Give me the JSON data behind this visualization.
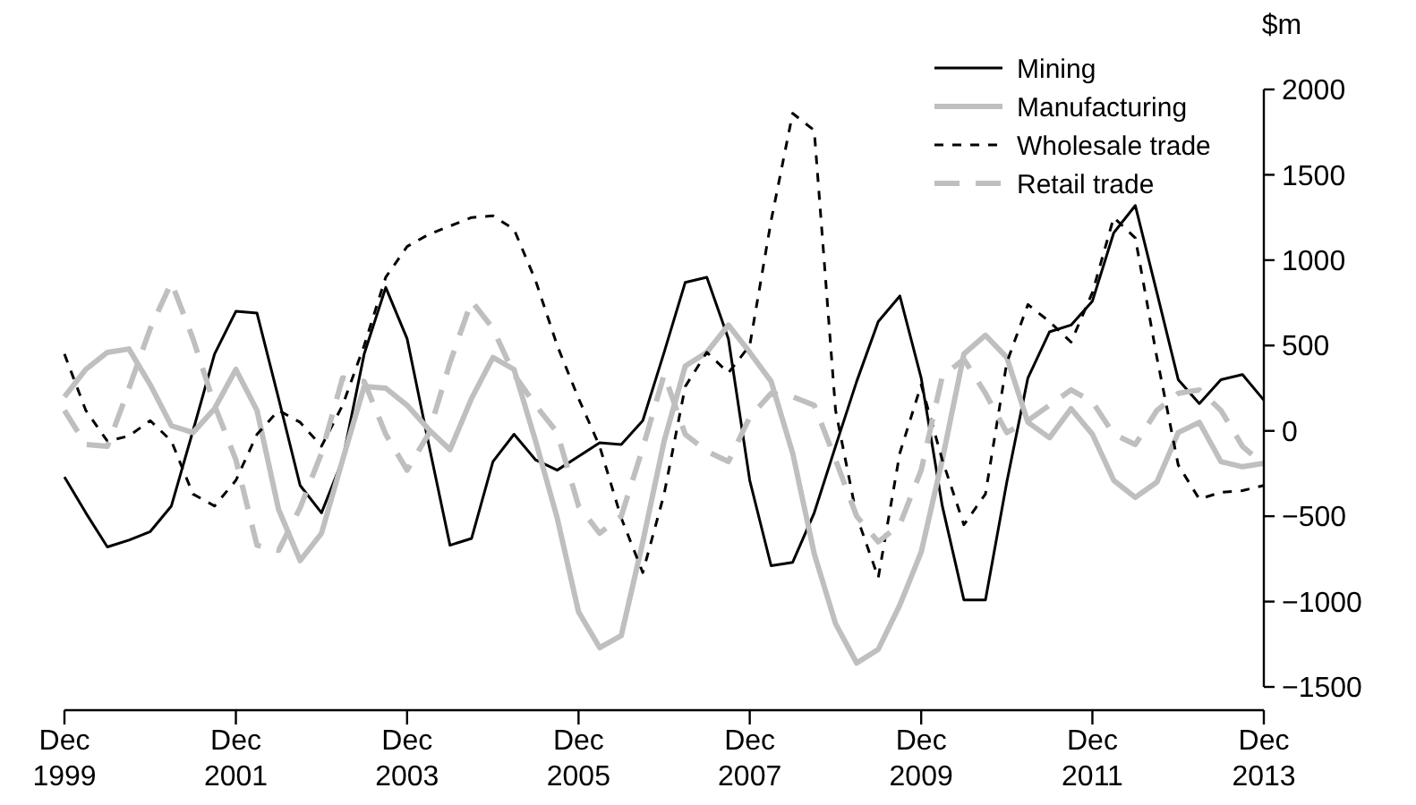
{
  "chart_data": {
    "type": "line",
    "ylabel": "$m",
    "x": [
      "1999-12",
      "2000-03",
      "2000-06",
      "2000-09",
      "2000-12",
      "2001-03",
      "2001-06",
      "2001-09",
      "2001-12",
      "2002-03",
      "2002-06",
      "2002-09",
      "2002-12",
      "2003-03",
      "2003-06",
      "2003-09",
      "2003-12",
      "2004-03",
      "2004-06",
      "2004-09",
      "2004-12",
      "2005-03",
      "2005-06",
      "2005-09",
      "2005-12",
      "2006-03",
      "2006-06",
      "2006-09",
      "2006-12",
      "2007-03",
      "2007-06",
      "2007-09",
      "2007-12",
      "2008-03",
      "2008-06",
      "2008-09",
      "2008-12",
      "2009-03",
      "2009-06",
      "2009-09",
      "2009-12",
      "2010-03",
      "2010-06",
      "2010-09",
      "2010-12",
      "2011-03",
      "2011-06",
      "2011-09",
      "2011-12",
      "2012-03",
      "2012-06",
      "2012-09",
      "2012-12",
      "2013-03",
      "2013-06",
      "2013-09",
      "2013-12"
    ],
    "series": [
      {
        "name": "Mining",
        "color": "#000000",
        "line_style": "solid",
        "values": [
          -270,
          -480,
          -680,
          -640,
          -590,
          -440,
          0,
          450,
          700,
          690,
          190,
          -320,
          -480,
          -170,
          450,
          840,
          540,
          -70,
          -670,
          -630,
          -180,
          -20,
          -170,
          -230,
          -150,
          -70,
          -80,
          60,
          460,
          870,
          900,
          540,
          -290,
          -790,
          -770,
          -480,
          -90,
          290,
          640,
          790,
          310,
          -440,
          -990,
          -990,
          -300,
          310,
          580,
          620,
          760,
          1160,
          1320,
          810,
          300,
          160,
          300,
          330,
          180
        ]
      },
      {
        "name": "Manufacturing",
        "color": "#bfbfbf",
        "line_style": "solid",
        "values": [
          200,
          360,
          460,
          480,
          270,
          30,
          -10,
          130,
          360,
          120,
          -460,
          -760,
          -600,
          -170,
          260,
          250,
          150,
          10,
          -110,
          190,
          430,
          360,
          -60,
          -510,
          -1060,
          -1270,
          -1200,
          -650,
          -60,
          380,
          460,
          620,
          460,
          290,
          -130,
          -720,
          -1130,
          -1360,
          -1280,
          -1020,
          -710,
          -170,
          450,
          560,
          430,
          50,
          -40,
          130,
          -20,
          -290,
          -390,
          -300,
          -10,
          50,
          -180,
          -210,
          -190
        ]
      },
      {
        "name": "Wholesale trade",
        "color": "#000000",
        "line_style": "dashed",
        "values": [
          450,
          120,
          -60,
          -30,
          60,
          -60,
          -370,
          -440,
          -290,
          -20,
          120,
          50,
          -90,
          150,
          500,
          900,
          1080,
          1150,
          1200,
          1250,
          1260,
          1180,
          880,
          500,
          190,
          -90,
          -510,
          -830,
          -370,
          260,
          460,
          340,
          500,
          1230,
          1860,
          1760,
          120,
          -500,
          -860,
          -130,
          270,
          -170,
          -550,
          -370,
          400,
          740,
          640,
          520,
          810,
          1250,
          1130,
          430,
          -200,
          -400,
          -360,
          -350,
          -320
        ]
      },
      {
        "name": "Retail trade",
        "color": "#bfbfbf",
        "line_style": "dashed",
        "values": [
          120,
          -80,
          -90,
          250,
          600,
          870,
          540,
          150,
          -170,
          -670,
          -700,
          -450,
          -130,
          310,
          290,
          -20,
          -230,
          -20,
          400,
          760,
          600,
          330,
          150,
          -10,
          -440,
          -600,
          -500,
          -100,
          330,
          -20,
          -120,
          -180,
          80,
          220,
          200,
          150,
          -170,
          -500,
          -650,
          -550,
          -230,
          320,
          420,
          220,
          -10,
          60,
          150,
          240,
          170,
          -20,
          -80,
          120,
          220,
          240,
          120,
          -90,
          -200
        ]
      }
    ],
    "xlim": [
      "1999-12",
      "2013-12"
    ],
    "xticks": [
      {
        "value": "1999-12",
        "label": "Dec 1999"
      },
      {
        "value": "2001-12",
        "label": "Dec 2001"
      },
      {
        "value": "2003-12",
        "label": "Dec 2003"
      },
      {
        "value": "2005-12",
        "label": "Dec 2005"
      },
      {
        "value": "2007-12",
        "label": "Dec 2007"
      },
      {
        "value": "2009-12",
        "label": "Dec 2009"
      },
      {
        "value": "2011-12",
        "label": "Dec 2011"
      },
      {
        "value": "2013-12",
        "label": "Dec 2013"
      }
    ],
    "ylim": [
      -1500,
      2000
    ],
    "yticks": [
      -1500,
      -1000,
      -500,
      0,
      500,
      1000,
      1500,
      2000
    ],
    "grid": false,
    "legend": "top right",
    "marker": "none"
  }
}
